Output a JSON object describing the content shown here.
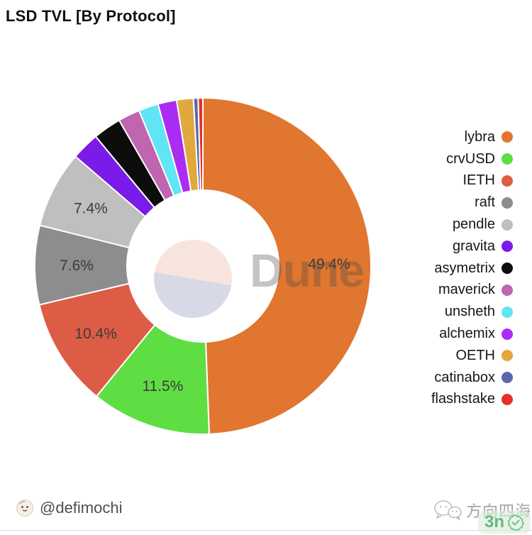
{
  "page": {
    "background": "#ffffff"
  },
  "header": {
    "title": "LSD TVL [By Protocol]"
  },
  "watermark": {
    "text": "Dune"
  },
  "chart_data": {
    "type": "pie",
    "donut": true,
    "title": "LSD TVL [By Protocol]",
    "legend_position": "right",
    "direction": "clockwise",
    "start_angle_deg": 0,
    "slice_label_format": "percent",
    "slice_label_min_pct": 5,
    "categories": [
      "lybra",
      "crvUSD",
      "IETH",
      "raft",
      "pendle",
      "gravita",
      "asymetrix",
      "maverick",
      "unsheth",
      "alchemix",
      "OETH",
      "catinabox",
      "flashstake"
    ],
    "values": [
      49.4,
      11.5,
      10.4,
      7.6,
      7.4,
      2.7,
      2.7,
      2.1,
      1.9,
      1.8,
      1.6,
      0.45,
      0.45
    ],
    "displayed_labels": [
      "49.4%",
      "11.5%",
      "10.4%",
      "7.6%",
      "7.4%"
    ],
    "colors": [
      "#e0762f",
      "#5fde43",
      "#dd5c45",
      "#8d8d8d",
      "#bfbfbf",
      "#7a1be9",
      "#0d0d0d",
      "#c065af",
      "#5fe5f3",
      "#ab2cf2",
      "#e0a83d",
      "#5a68af",
      "#e4302a"
    ]
  },
  "center_logo": {
    "top_color": "#f8e4de",
    "bottom_color": "#d7d9e6"
  },
  "footer": {
    "author_handle": "@defimochi",
    "brand_text": "方向四海",
    "badge_text": "3n",
    "badge_check_color": "#3fae5c"
  }
}
